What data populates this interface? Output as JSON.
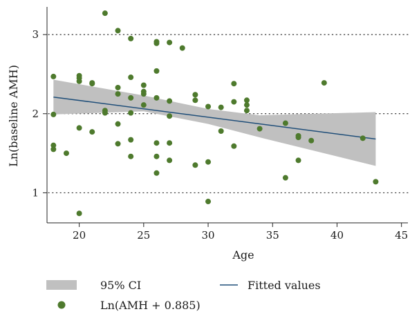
{
  "chart_data": {
    "type": "scatter",
    "xlabel": "Age",
    "ylabel": "Ln(baseline AMH)",
    "xlim": [
      17.5,
      45.5
    ],
    "ylim": [
      0.62,
      3.35
    ],
    "xticks": [
      "20",
      "25",
      "30",
      "35",
      "40",
      "45"
    ],
    "yticks": [
      "1",
      "2",
      "3"
    ],
    "grid": "horizontal dotted at y ticks",
    "legend_position": "bottom",
    "colors": {
      "points": "#4e7a2d",
      "fit_line": "#1f4e79",
      "ci_band": "#c0c0c0"
    },
    "legend": {
      "ci_label": "95% CI",
      "fit_label": "Fitted values",
      "points_label": "Ln(AMH + 0.885)"
    },
    "series": [
      {
        "name": "Ln(AMH + 0.885)",
        "type": "scatter",
        "points": [
          [
            18,
            2.47
          ],
          [
            18,
            1.99
          ],
          [
            18,
            1.6
          ],
          [
            18,
            1.55
          ],
          [
            19,
            1.5
          ],
          [
            20,
            2.48
          ],
          [
            20,
            2.45
          ],
          [
            20,
            2.41
          ],
          [
            20,
            1.82
          ],
          [
            20,
            0.74
          ],
          [
            21,
            2.39
          ],
          [
            21,
            2.38
          ],
          [
            21,
            1.77
          ],
          [
            22,
            3.27
          ],
          [
            22,
            2.04
          ],
          [
            22,
            2.01
          ],
          [
            23,
            3.05
          ],
          [
            23,
            2.33
          ],
          [
            23,
            2.25
          ],
          [
            23,
            1.87
          ],
          [
            23,
            1.62
          ],
          [
            24,
            2.95
          ],
          [
            24,
            2.46
          ],
          [
            24,
            2.2
          ],
          [
            24,
            2.01
          ],
          [
            24,
            1.67
          ],
          [
            24,
            1.46
          ],
          [
            25,
            2.36
          ],
          [
            25,
            2.28
          ],
          [
            25,
            2.25
          ],
          [
            25,
            2.11
          ],
          [
            26,
            2.91
          ],
          [
            26,
            2.89
          ],
          [
            26,
            2.54
          ],
          [
            26,
            2.2
          ],
          [
            26,
            1.63
          ],
          [
            26,
            1.46
          ],
          [
            26,
            1.25
          ],
          [
            27,
            2.9
          ],
          [
            27,
            2.16
          ],
          [
            27,
            1.97
          ],
          [
            27,
            1.63
          ],
          [
            27,
            1.41
          ],
          [
            28,
            2.83
          ],
          [
            29,
            2.24
          ],
          [
            29,
            2.17
          ],
          [
            29,
            1.35
          ],
          [
            30,
            2.09
          ],
          [
            30,
            1.39
          ],
          [
            30,
            0.89
          ],
          [
            31,
            2.08
          ],
          [
            31,
            1.78
          ],
          [
            32,
            2.38
          ],
          [
            32,
            2.15
          ],
          [
            32,
            1.59
          ],
          [
            33,
            2.17
          ],
          [
            33,
            2.11
          ],
          [
            33,
            2.04
          ],
          [
            34,
            1.81
          ],
          [
            36,
            1.88
          ],
          [
            36,
            1.19
          ],
          [
            37,
            1.72
          ],
          [
            37,
            1.7
          ],
          [
            37,
            1.41
          ],
          [
            38,
            1.66
          ],
          [
            39,
            2.39
          ],
          [
            42,
            1.69
          ],
          [
            43,
            1.14
          ]
        ]
      },
      {
        "name": "Fitted values",
        "type": "line",
        "x": [
          18,
          43
        ],
        "y": [
          2.21,
          1.68
        ]
      },
      {
        "name": "95% CI",
        "type": "band",
        "x": [
          18,
          25,
          30,
          34,
          43
        ],
        "lower": [
          1.99,
          2.03,
          1.87,
          1.7,
          1.34
        ],
        "upper": [
          2.43,
          2.23,
          2.06,
          1.98,
          2.02
        ]
      }
    ]
  }
}
